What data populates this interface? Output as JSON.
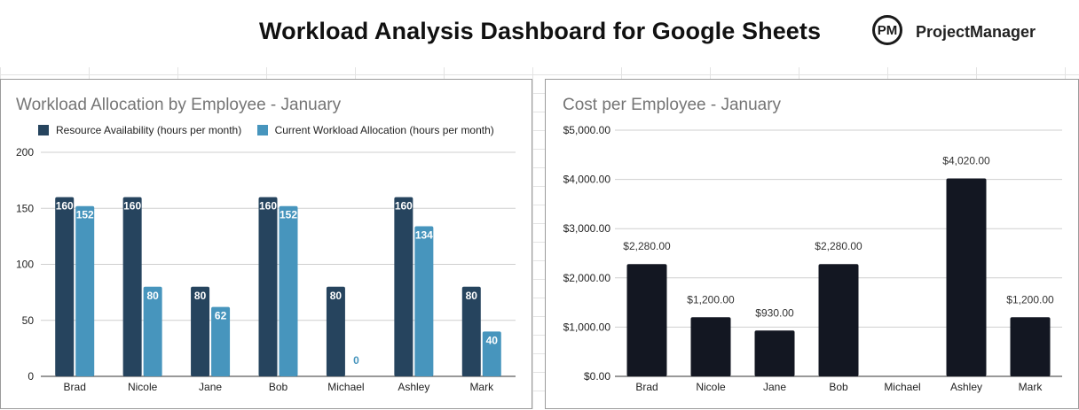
{
  "header": {
    "title": "Workload Analysis Dashboard for Google Sheets",
    "logo_mark": "PM",
    "logo_text": "ProjectManager"
  },
  "colors": {
    "availability": "#26445e",
    "allocation": "#4795bd",
    "cost": "#131722",
    "gridline": "#cfcfcf",
    "axis": "#333333"
  },
  "chart_data": [
    {
      "type": "bar",
      "title": "Workload Allocation by Employee - January",
      "categories": [
        "Brad",
        "Nicole",
        "Jane",
        "Bob",
        "Michael",
        "Ashley",
        "Mark"
      ],
      "series": [
        {
          "name": "Resource Availability (hours per month)",
          "values": [
            160,
            160,
            80,
            160,
            80,
            160,
            80
          ]
        },
        {
          "name": "Current Workload Allocation (hours per month)",
          "values": [
            152,
            80,
            62,
            152,
            0,
            134,
            40
          ]
        }
      ],
      "ylim": [
        0,
        200
      ],
      "yticks": [
        "0",
        "50",
        "100",
        "150",
        "200"
      ],
      "yticks_values": [
        0,
        50,
        100,
        150,
        200
      ],
      "legend": "top-left",
      "grid": true
    },
    {
      "type": "bar",
      "title": "Cost per Employee - January",
      "categories": [
        "Brad",
        "Nicole",
        "Jane",
        "Bob",
        "Michael",
        "Ashley",
        "Mark"
      ],
      "values": [
        2280,
        1200,
        930,
        2280,
        0,
        4020,
        1200
      ],
      "value_labels": [
        "$2,280.00",
        "$1,200.00",
        "$930.00",
        "$2,280.00",
        "",
        "$4,020.00",
        "$1,200.00"
      ],
      "ylim": [
        0,
        5000
      ],
      "yticks": [
        "$0.00",
        "$1,000.00",
        "$2,000.00",
        "$3,000.00",
        "$4,000.00",
        "$5,000.00"
      ],
      "yticks_values": [
        0,
        1000,
        2000,
        3000,
        4000,
        5000
      ],
      "legend": "none",
      "grid": true
    }
  ]
}
